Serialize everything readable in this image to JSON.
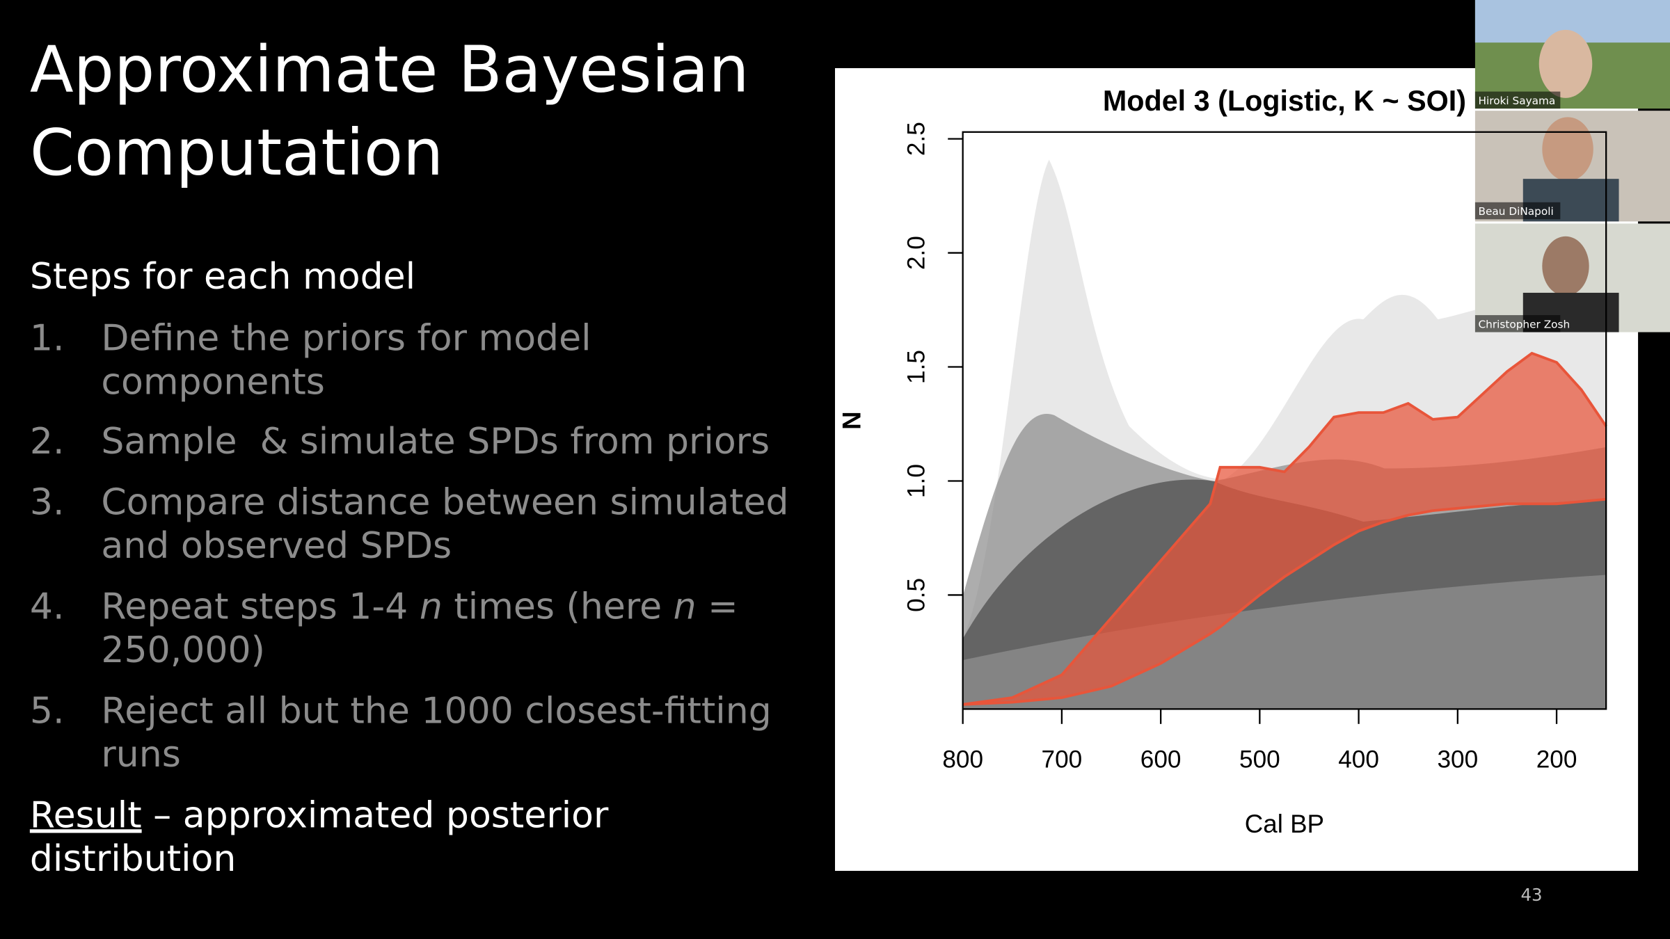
{
  "slide": {
    "title_lines": [
      "Approximate Bayesian",
      "Computation"
    ],
    "intro": "Steps for each model",
    "items": [
      {
        "number": "1.",
        "lines": [
          [
            "Define the priors for model"
          ],
          [
            "components"
          ]
        ]
      },
      {
        "number": "2.",
        "lines": [
          [
            "Sample  & simulate SPDs from priors"
          ]
        ]
      },
      {
        "number": "3.",
        "lines": [
          [
            "Compare distance between simulated"
          ],
          [
            "and observed SPDs"
          ]
        ]
      },
      {
        "number": "4.",
        "lines": [
          [
            "Repeat steps 1-4 ",
            {
              "text": "n",
              "italic": true
            },
            " times (here ",
            {
              "text": "n",
              "italic": true
            },
            " ="
          ],
          [
            "250,000)"
          ]
        ]
      },
      {
        "number": "5.",
        "lines": [
          [
            "Reject all but the 1000 closest-fitting"
          ],
          [
            "runs"
          ]
        ]
      }
    ],
    "result": {
      "label": "Result",
      "lines": [
        " – approximated posterior",
        "distribution"
      ]
    },
    "page_number": "43"
  },
  "chart_data": {
    "type": "band",
    "title": "Model 3 (Logistic, K ~ SOI)",
    "x_label": "Cal BP",
    "y_label": "N",
    "xlim": [
      800,
      150
    ],
    "ylim": [
      0,
      2.53
    ],
    "xticks": [
      800,
      700,
      600,
      500,
      400,
      300,
      200
    ],
    "yticks": [
      0.5,
      {
        "value": 1,
        "label": "1.0"
      },
      1.5,
      {
        "value": 2,
        "label": "2.0"
      },
      2.5
    ],
    "color": "#e8553a",
    "x": [
      800,
      750,
      700,
      650,
      600,
      550,
      540,
      500,
      475,
      450,
      425,
      400,
      375,
      350,
      325,
      300,
      275,
      250,
      225,
      200,
      175,
      150
    ],
    "upper": [
      0.02,
      0.05,
      0.15,
      0.4,
      0.65,
      0.9,
      1.06,
      1.06,
      1.04,
      1.15,
      1.28,
      1.3,
      1.3,
      1.34,
      1.27,
      1.28,
      1.38,
      1.48,
      1.56,
      1.52,
      1.4,
      1.24
    ],
    "lower": [
      0.02,
      0.03,
      0.05,
      0.1,
      0.2,
      0.33,
      0.36,
      0.5,
      0.58,
      0.65,
      0.72,
      0.78,
      0.82,
      0.85,
      0.87,
      0.88,
      0.89,
      0.9,
      0.9,
      0.9,
      0.91,
      0.92
    ]
  },
  "participants": [
    "Hiroki Sayama",
    "Beau DiNapoli",
    "Christopher Zosh"
  ]
}
